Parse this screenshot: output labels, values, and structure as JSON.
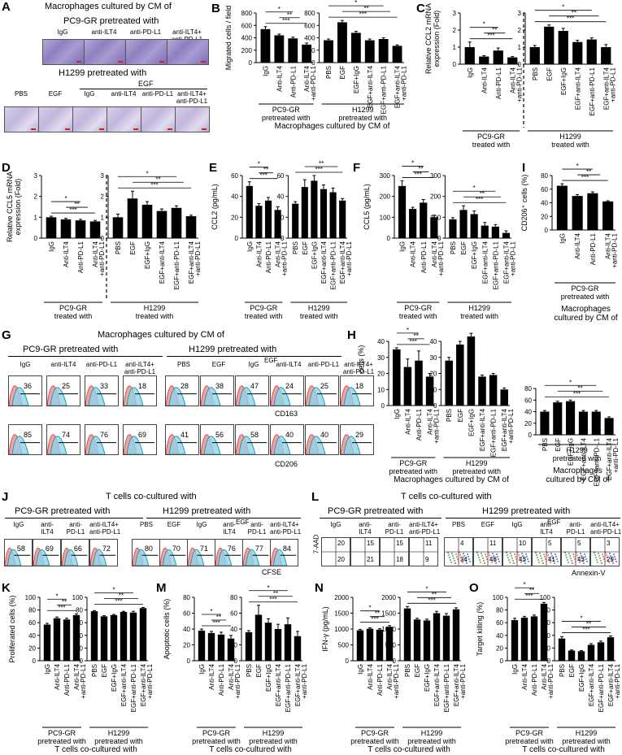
{
  "panels": {
    "A": {
      "letter": "A",
      "title": "Macrophages cultured by CM of",
      "pc9_header": "PC9-GR pretreated with",
      "pc9_labels": [
        "IgG",
        "anti-ILT4",
        "anti-PD-L1",
        "anti-ILT4+\nanti-PD-L1"
      ],
      "h1299_header": "H1299 pretreated with",
      "egf_label": "EGF",
      "h1299_labels": [
        "PBS",
        "EGF",
        "IgG",
        "anti-ILT4",
        "anti-PD-L1",
        "anti-ILT4+\nanti-PD-L1"
      ]
    },
    "G": {
      "letter": "G",
      "title": "Macrophages cultured by CM of",
      "pc9_header": "PC9-GR pretreated with",
      "h1299_header": "H1299 pretreated with",
      "egf_label": "EGF",
      "pc9_labels": [
        "IgG",
        "anti-ILT4",
        "anti-PD-L1",
        "anti-ILT4+\nanti-PD-L1"
      ],
      "h1299_labels": [
        "PBS",
        "EGF",
        "IgG",
        "anti-ILT4",
        "anti-PD-L1",
        "anti-ILT4+\nanti-PD-L1"
      ],
      "cd163_values": [
        "36",
        "25",
        "33",
        "18",
        "28",
        "38",
        "47",
        "24",
        "25",
        "18"
      ],
      "cd206_values": [
        "85",
        "74",
        "76",
        "69",
        "41",
        "56",
        "58",
        "40",
        "40",
        "29"
      ],
      "axis_cd163": "CD163",
      "axis_cd206": "CD206"
    },
    "J": {
      "letter": "J",
      "title": "T cells co-cultured with",
      "pc9_header": "PC9-GR pretreated with",
      "h1299_header": "H1299 pretreated with",
      "egf_label": "EGF",
      "pc9_labels": [
        "IgG",
        "anti-\nILT4",
        "anti-\nPD-L1",
        "anti-ILT4+\nanti-PD-L1"
      ],
      "h1299_labels": [
        "PBS",
        "EGF",
        "IgG",
        "anti-\nILT4",
        "anti-\nPD-L1",
        "anti-ILT4+\nanti-PD-L1"
      ],
      "values": [
        "58",
        "69",
        "66",
        "72",
        "80",
        "70",
        "71",
        "76",
        "77",
        "84"
      ],
      "axis": "CFSE"
    },
    "L": {
      "letter": "L",
      "title": "T cells co-cultured with",
      "pc9_header": "PC9-GR pretreated with",
      "h1299_header": "H1299 pretreated with",
      "egf_label": "EGF",
      "pc9_labels": [
        "IgG",
        "anti-\nILT4",
        "anti-\nPD-L1",
        "anti-ILT4+\nanti-PD-L1"
      ],
      "h1299_labels": [
        "PBS",
        "EGF",
        "IgG",
        "anti-\nILT4",
        "anti-\nPD-L1",
        "anti-ILT4+\nanti-PD-L1"
      ],
      "upper_values": [
        "20",
        "15",
        "15",
        "11",
        "4",
        "11",
        "10",
        "5",
        "5",
        "3"
      ],
      "lower_values": [
        "20",
        "21",
        "18",
        "9",
        "34",
        "48",
        "43",
        "41",
        "43",
        "29"
      ],
      "y_axis": "7-AAD",
      "x_axis": "Annexin-V"
    }
  },
  "chart_data": [
    {
      "id": "B",
      "type": "bar",
      "letter": "B",
      "ylabel": "Migrated cells / field",
      "ylim": [
        0,
        800
      ],
      "yticks": [
        0,
        200,
        400,
        600,
        800
      ],
      "groups": [
        {
          "categories": [
            "IgG",
            "Anti-ILT4",
            "Anti-PD-L1",
            "Anti-ILT4\n+anti-PD-L1"
          ],
          "values": [
            540,
            440,
            390,
            290
          ],
          "errors": [
            40,
            20,
            20,
            25
          ],
          "caption": "PC9-GR\npretreated with"
        },
        {
          "categories": [
            "PBS",
            "EGF",
            "EGF+IgG",
            "EGF+anti-ILT4",
            "EGF+anti-PD-L1",
            "EGF+anti-ILT4\n+anti-PD-L1"
          ],
          "values": [
            360,
            650,
            480,
            360,
            380,
            270
          ],
          "errors": [
            20,
            30,
            25,
            20,
            20,
            15
          ],
          "caption": "H1299\npretreated with"
        }
      ],
      "bottom_caption": "Macrophages cultured by CM of"
    },
    {
      "id": "C",
      "type": "bar",
      "letter": "C",
      "ylabel": "Relative CCL2 mRNA\nexpression (Fold)",
      "ylim": [
        0,
        3
      ],
      "yticks": [
        0,
        1,
        2,
        3
      ],
      "groups": [
        {
          "categories": [
            "IgG",
            "Anti-ILT4",
            "Anti-PD-L1",
            "Anti-ILT4\n+anti-PD-L1"
          ],
          "values": [
            1.0,
            0.45,
            0.8,
            0.4
          ],
          "errors": [
            0.3,
            0.05,
            0.15,
            0.05
          ],
          "caption": "PC9-GR\ntreated with"
        },
        {
          "categories": [
            "PBS",
            "EGF",
            "EGF+IgG",
            "EGF+anti-ILT4",
            "EGF+anti-PD-L1",
            "EGF+anti-ILT4\n+anti-PD-L1"
          ],
          "values": [
            1.0,
            2.2,
            1.95,
            1.3,
            1.45,
            1.0
          ],
          "errors": [
            0.1,
            0.1,
            0.15,
            0.1,
            0.1,
            0.15
          ],
          "caption": "H1299\ntreated with"
        }
      ],
      "divider": true
    },
    {
      "id": "D",
      "type": "bar",
      "letter": "D",
      "ylabel": "Relative CCL5 mRNA\nexpression (Fold)",
      "ylim": [
        0,
        3
      ],
      "yticks": [
        0,
        1,
        2,
        3
      ],
      "groups": [
        {
          "categories": [
            "IgG",
            "Anti-ILT4",
            "Anti-PD-L1",
            "Anti-ILT4\n+anti-PD-L1"
          ],
          "values": [
            1.0,
            0.9,
            0.85,
            0.8
          ],
          "errors": [
            0.05,
            0.05,
            0.05,
            0.05
          ],
          "caption": "PC9-GR\ntreated with"
        },
        {
          "categories": [
            "PBS",
            "EGF",
            "EGF+IgG",
            "EGF+anti-ILT4",
            "EGF+anti-PD-L1",
            "EGF+anti-ILT4\n+anti-PD-L1"
          ],
          "values": [
            1.0,
            1.9,
            1.6,
            1.3,
            1.45,
            1.05
          ],
          "errors": [
            0.15,
            0.35,
            0.15,
            0.1,
            0.1,
            0.05
          ],
          "caption": "H1299\ntreated with"
        }
      ],
      "divider": true
    },
    {
      "id": "E",
      "type": "bar",
      "letter": "E",
      "ylabel": "CCL2 (pg/mL)",
      "ylim": [
        0,
        60
      ],
      "yticks": [
        0,
        20,
        40,
        60
      ],
      "groups": [
        {
          "categories": [
            "IgG",
            "Anti-ILT4",
            "Anti-PD-L1",
            "Anti-ILT4\n+anti-PD-L1"
          ],
          "values": [
            50,
            31,
            36,
            27
          ],
          "errors": [
            4,
            2,
            3,
            3
          ],
          "caption": "PC9-GR\ntreated with"
        },
        {
          "categories": [
            "PBS",
            "EGF",
            "EGF+IgG",
            "EGF+anti-ILT4",
            "EGF+anti-PD-L1",
            "EGF+anti-ILT4\n+anti-PD-L1"
          ],
          "values": [
            33,
            49,
            55,
            47,
            44,
            36
          ],
          "errors": [
            2,
            7,
            5,
            4,
            4,
            2
          ],
          "caption": "H1299\ntreated with"
        }
      ]
    },
    {
      "id": "F",
      "type": "bar",
      "letter": "F",
      "ylabel": "CCL5 (pg/mL)",
      "ylim": [
        0,
        300
      ],
      "yticks": [
        0,
        100,
        200,
        300
      ],
      "groups": [
        {
          "categories": [
            "IgG",
            "Anti-ILT4",
            "Anti-PD-L1",
            "Anti-ILT4\n+anti-PD-L1"
          ],
          "values": [
            250,
            140,
            170,
            100
          ],
          "errors": [
            25,
            8,
            15,
            10
          ],
          "caption": "PC9-GR\ntreated with"
        },
        {
          "categories": [
            "PBS",
            "EGF",
            "EGF+IgG",
            "EGF+anti-ILT4",
            "EGF+anti-PD-L1",
            "EGF+anti-ILT4\n+anti-PD-L1"
          ],
          "values": [
            90,
            135,
            115,
            60,
            55,
            25
          ],
          "errors": [
            8,
            20,
            15,
            15,
            10,
            10
          ],
          "caption": "H1299\ntreated with"
        }
      ]
    },
    {
      "id": "I",
      "type": "bar",
      "letter": "I",
      "ylabel": "CD206⁺ cells (%)",
      "ylim": [
        0,
        80
      ],
      "yticks": [
        0,
        20,
        40,
        60,
        80
      ],
      "groups": [
        {
          "categories": [
            "IgG",
            "Anti-ILT4",
            "Anti-PD-L1",
            "Anti-ILT4\n+anti-PD-L1"
          ],
          "values": [
            65,
            50,
            54,
            42
          ],
          "errors": [
            3,
            2,
            2,
            1
          ],
          "caption": "PC9-GR\npretreated with"
        }
      ],
      "bottom_caption": "Macrophages\ncultured by CM of"
    },
    {
      "id": "H",
      "type": "bar",
      "letter": "H",
      "ylabel": "CD163⁺ cells (%)",
      "ylim": [
        0,
        40
      ],
      "yticks": [
        0,
        10,
        20,
        30,
        40
      ],
      "groups": [
        {
          "categories": [
            "IgG",
            "Anti-ILT4",
            "Anti-PD-L1",
            "Anti-ILT4\n+anti-PD-L1"
          ],
          "values": [
            35,
            24,
            28,
            18
          ],
          "errors": [
            1,
            5,
            6,
            2
          ],
          "caption": "PC9-GR\npretreated with"
        },
        {
          "categories": [
            "PBS",
            "EGF",
            "EGF+IgG",
            "EGF+anti-ILT4",
            "EGF+anti-PD-L1",
            "EGF+anti-ILT4\n+anti-PD-L1"
          ],
          "values": [
            28,
            38,
            43,
            18,
            19,
            10
          ],
          "errors": [
            2,
            2,
            2,
            1,
            1,
            1
          ],
          "caption": "H1299\npretreated with"
        }
      ],
      "bottom_caption": "Macrophages cultured by CM of"
    },
    {
      "id": "H2",
      "type": "bar",
      "letter": "",
      "ylabel": "",
      "ylim": [
        0,
        80
      ],
      "yticks": [
        0,
        20,
        40,
        60,
        80
      ],
      "groups": [
        {
          "categories": [
            "PBS",
            "EGF",
            "EGF+IgG",
            "EGF+anti-ILT4",
            "EGF+anti-PD-L1",
            "EGF+anti-ILT4\n+anti-PD-L1"
          ],
          "values": [
            40,
            56,
            58,
            40,
            40,
            29
          ],
          "errors": [
            2,
            2,
            2,
            2,
            2,
            2
          ],
          "caption": "H1299\npretreated with"
        }
      ],
      "bottom_caption": "Macrophages\ncultured by CM of"
    },
    {
      "id": "K",
      "type": "bar",
      "letter": "K",
      "ylabel": "Proliferated cells (%)",
      "ylim": [
        0,
        100
      ],
      "yticks": [
        0,
        20,
        40,
        60,
        80,
        100
      ],
      "groups": [
        {
          "categories": [
            "IgG",
            "Anti-ILT4",
            "Anti-PD-L1",
            "Anti-ILT4\n+anti-PD-L1"
          ],
          "values": [
            57,
            67,
            65,
            72
          ],
          "errors": [
            2,
            2,
            2,
            2
          ],
          "caption": "PC9-GR\npretreated with"
        },
        {
          "categories": [
            "PBS",
            "EGF",
            "EGF+IgG",
            "EGF+anti-ILT4",
            "EGF+anti-PD-L1",
            "EGF+anti-ILT4\n+anti-PD-L1"
          ],
          "values": [
            78,
            70,
            72,
            77,
            76,
            83
          ],
          "errors": [
            1,
            1,
            1,
            1,
            2,
            1
          ],
          "caption": "H1299\npretreated with"
        }
      ],
      "bottom_caption": "T cells co-cultured with"
    },
    {
      "id": "M",
      "type": "bar",
      "letter": "M",
      "ylabel": "Apoptotic cells (%)",
      "ylim": [
        0,
        80
      ],
      "yticks": [
        0,
        20,
        40,
        60,
        80
      ],
      "groups": [
        {
          "categories": [
            "IgG",
            "Anti-ILT4",
            "Anti-PD-L1",
            "Anti-ILT4\n+anti-PD-L1"
          ],
          "values": [
            38,
            35,
            33,
            28
          ],
          "errors": [
            2,
            2,
            3,
            4
          ],
          "caption": "PC9-GR\npretreated with"
        },
        {
          "categories": [
            "PBS",
            "EGF",
            "EGF+IgG",
            "EGF+anti-ILT4",
            "EGF+anti-PD-L1",
            "EGF+anti-ILT4\n+anti-PD-L1"
          ],
          "values": [
            36,
            58,
            48,
            40,
            46,
            31
          ],
          "errors": [
            2,
            12,
            5,
            6,
            8,
            6
          ],
          "caption": "H1299\npretreated with"
        }
      ],
      "bottom_caption": "T cells co-cultured with"
    },
    {
      "id": "N",
      "type": "bar",
      "letter": "N",
      "ylabel": "IFN-γ (pg/mL)",
      "ylim": [
        0,
        2000
      ],
      "yticks": [
        0,
        500,
        1000,
        1500,
        2000
      ],
      "groups": [
        {
          "categories": [
            "IgG",
            "Anti-ILT4",
            "Anti-PD-L1",
            "Anti-ILT4\n+anti-PD-L1"
          ],
          "values": [
            960,
            1010,
            980,
            1070
          ],
          "errors": [
            30,
            30,
            30,
            40
          ],
          "caption": "PC9-GR\npretreated with"
        },
        {
          "categories": [
            "PBS",
            "EGF",
            "EGF+IgG",
            "EGF+anti-ILT4",
            "EGF+anti-PD-L1",
            "EGF+anti-ILT4\n+anti-PD-L1"
          ],
          "values": [
            1650,
            1300,
            1270,
            1500,
            1420,
            1620
          ],
          "errors": [
            60,
            40,
            40,
            60,
            70,
            50
          ],
          "caption": "H1299\npretreated with"
        }
      ],
      "bottom_caption": "T cells co-cultured with"
    },
    {
      "id": "O",
      "type": "bar",
      "letter": "O",
      "ylabel": "Target killing (%)",
      "ylim": [
        0,
        100
      ],
      "yticks": [
        0,
        20,
        40,
        60,
        80,
        100
      ],
      "groups": [
        {
          "categories": [
            "IgG",
            "Anti-ILT4",
            "Anti-PD-L1",
            "Anti-ILT4\n+anti-PD-L1"
          ],
          "values": [
            64,
            68,
            70,
            90
          ],
          "errors": [
            3,
            2,
            2,
            2
          ],
          "caption": "PC9-GR\npretreated with"
        },
        {
          "categories": [
            "PBS",
            "EGF",
            "EGF+IgG",
            "EGF+anti-ILT4",
            "EGF+anti-PD-L1",
            "EGF+anti-ILT4\n+anti-PD-L1"
          ],
          "values": [
            35,
            16,
            15,
            25,
            29,
            37
          ],
          "errors": [
            3,
            1,
            1,
            2,
            2,
            2
          ],
          "caption": "H1299\npretreated with"
        }
      ],
      "bottom_caption": "T cells co-cultured with"
    }
  ]
}
